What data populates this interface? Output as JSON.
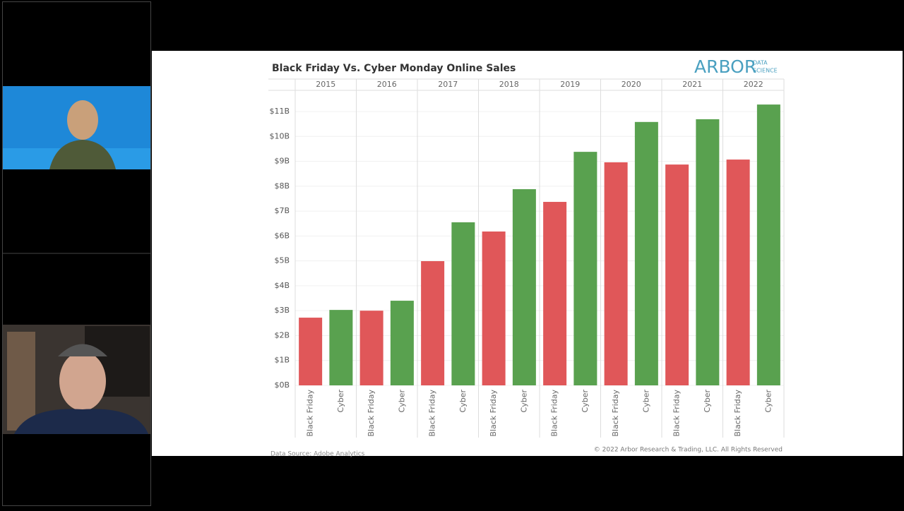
{
  "chart_data": {
    "type": "bar",
    "title": "Black Friday Vs. Cyber Monday Online Sales",
    "categories": [
      "2015",
      "2016",
      "2017",
      "2018",
      "2019",
      "2020",
      "2021",
      "2022"
    ],
    "series": [
      {
        "name": "Black Friday",
        "color": "#e05759",
        "values": [
          2.72,
          3.0,
          4.99,
          6.18,
          7.37,
          8.96,
          8.87,
          9.07
        ]
      },
      {
        "name": "Cyber",
        "color": "#59a14f",
        "values": [
          3.03,
          3.4,
          6.55,
          7.88,
          9.38,
          10.58,
          10.69,
          11.28
        ]
      }
    ],
    "ylim": [
      0,
      11.85
    ],
    "yticks": [
      {
        "value": 0,
        "label": "$0B"
      },
      {
        "value": 1,
        "label": "$1B"
      },
      {
        "value": 2,
        "label": "$2B"
      },
      {
        "value": 3,
        "label": "$3B"
      },
      {
        "value": 4,
        "label": "$4B"
      },
      {
        "value": 5,
        "label": "$5B"
      },
      {
        "value": 6,
        "label": "$6B"
      },
      {
        "value": 7,
        "label": "$7B"
      },
      {
        "value": 8,
        "label": "$8B"
      },
      {
        "value": 9,
        "label": "$9B"
      },
      {
        "value": 10,
        "label": "$10B"
      },
      {
        "value": 11,
        "label": "$11B"
      }
    ],
    "grid": true
  },
  "branding": {
    "logo": "ARBOR",
    "logo_sub_1": "DATA",
    "logo_sub_2": "SCIENCE"
  },
  "footer": {
    "source": "Data Source: Adobe Analytics",
    "copyright": "© 2022 Arbor Research & Trading, LLC. All Rights Reserved"
  }
}
